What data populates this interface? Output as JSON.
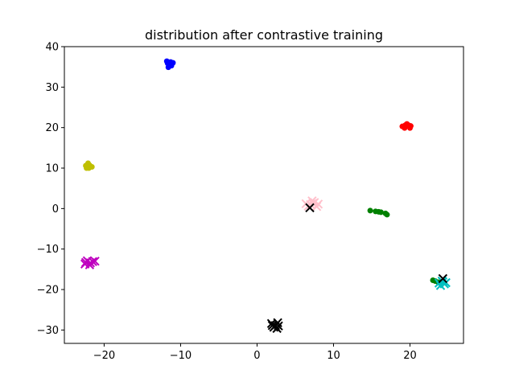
{
  "chart_data": {
    "type": "scatter",
    "title": "distribution after contrastive training",
    "xlabel": "",
    "ylabel": "",
    "xlim": [
      -25.2,
      27.0
    ],
    "ylim": [
      -33.3,
      40.0
    ],
    "xticks": [
      -20,
      -10,
      0,
      10,
      20
    ],
    "yticks": [
      -30,
      -20,
      -10,
      0,
      10,
      20,
      30,
      40
    ],
    "xtick_labels": [
      "−20",
      "−10",
      "0",
      "10",
      "20"
    ],
    "ytick_labels": [
      "−30",
      "−20",
      "−10",
      "0",
      "10",
      "20",
      "30",
      "40"
    ],
    "grid": false,
    "series": [
      {
        "color": "#0000ff",
        "marker": "dot",
        "points": [
          [
            -11.8,
            36.4
          ],
          [
            -11.3,
            36.2
          ],
          [
            -11.5,
            35.6
          ],
          [
            -11.2,
            35.3
          ],
          [
            -11.6,
            34.9
          ],
          [
            -11.0,
            36.0
          ],
          [
            -11.7,
            35.9
          ]
        ]
      },
      {
        "color": "#ff0000",
        "marker": "dot",
        "points": [
          [
            19.0,
            20.3
          ],
          [
            19.6,
            20.9
          ],
          [
            20.1,
            20.4
          ],
          [
            19.3,
            19.9
          ],
          [
            20.0,
            19.9
          ],
          [
            19.8,
            20.6
          ],
          [
            19.4,
            20.6
          ]
        ]
      },
      {
        "color": "#bfbf00",
        "marker": "dot",
        "points": [
          [
            -22.4,
            10.6
          ],
          [
            -22.0,
            10.0
          ],
          [
            -21.6,
            10.3
          ],
          [
            -22.3,
            10.0
          ],
          [
            -22.1,
            11.2
          ],
          [
            -21.9,
            10.7
          ]
        ]
      },
      {
        "color": "#008000",
        "marker": "dot",
        "points": [
          [
            14.8,
            -0.5
          ],
          [
            15.5,
            -0.7
          ],
          [
            16.2,
            -0.9
          ],
          [
            16.8,
            -1.2
          ],
          [
            17.0,
            -1.5
          ],
          [
            15.9,
            -0.8
          ],
          [
            23.3,
            -17.9
          ],
          [
            23.7,
            -18.2
          ],
          [
            23.0,
            -17.7
          ]
        ]
      },
      {
        "color": "#ffc0cb",
        "marker": "x",
        "points": [
          [
            6.4,
            1.2
          ],
          [
            7.0,
            1.0
          ],
          [
            7.5,
            1.5
          ],
          [
            8.0,
            1.1
          ],
          [
            7.2,
            1.9
          ],
          [
            6.7,
            0.6
          ],
          [
            7.8,
            0.5
          ],
          [
            7.3,
            1.3
          ]
        ]
      },
      {
        "color": "#bf00bf",
        "marker": "x",
        "points": [
          [
            -22.4,
            -13.3
          ],
          [
            -21.8,
            -13.4
          ],
          [
            -22.2,
            -12.9
          ],
          [
            -21.5,
            -13.1
          ],
          [
            -22.5,
            -13.7
          ],
          [
            -21.9,
            -13.9
          ],
          [
            -21.2,
            -13.0
          ]
        ]
      },
      {
        "color": "#00bfbf",
        "marker": "x",
        "points": [
          [
            23.8,
            -18.4
          ],
          [
            24.2,
            -17.9
          ],
          [
            24.5,
            -18.6
          ],
          [
            24.0,
            -19.0
          ],
          [
            24.3,
            -18.1
          ],
          [
            24.7,
            -18.3
          ]
        ]
      },
      {
        "color": "#000000",
        "marker": "x",
        "points": [
          [
            1.9,
            -28.4
          ],
          [
            2.4,
            -28.9
          ],
          [
            2.7,
            -28.2
          ],
          [
            2.2,
            -29.3
          ],
          [
            2.6,
            -29.6
          ],
          [
            2.0,
            -28.9
          ],
          [
            2.8,
            -29.0
          ],
          [
            24.3,
            -17.3
          ],
          [
            6.9,
            0.2
          ]
        ]
      }
    ]
  }
}
